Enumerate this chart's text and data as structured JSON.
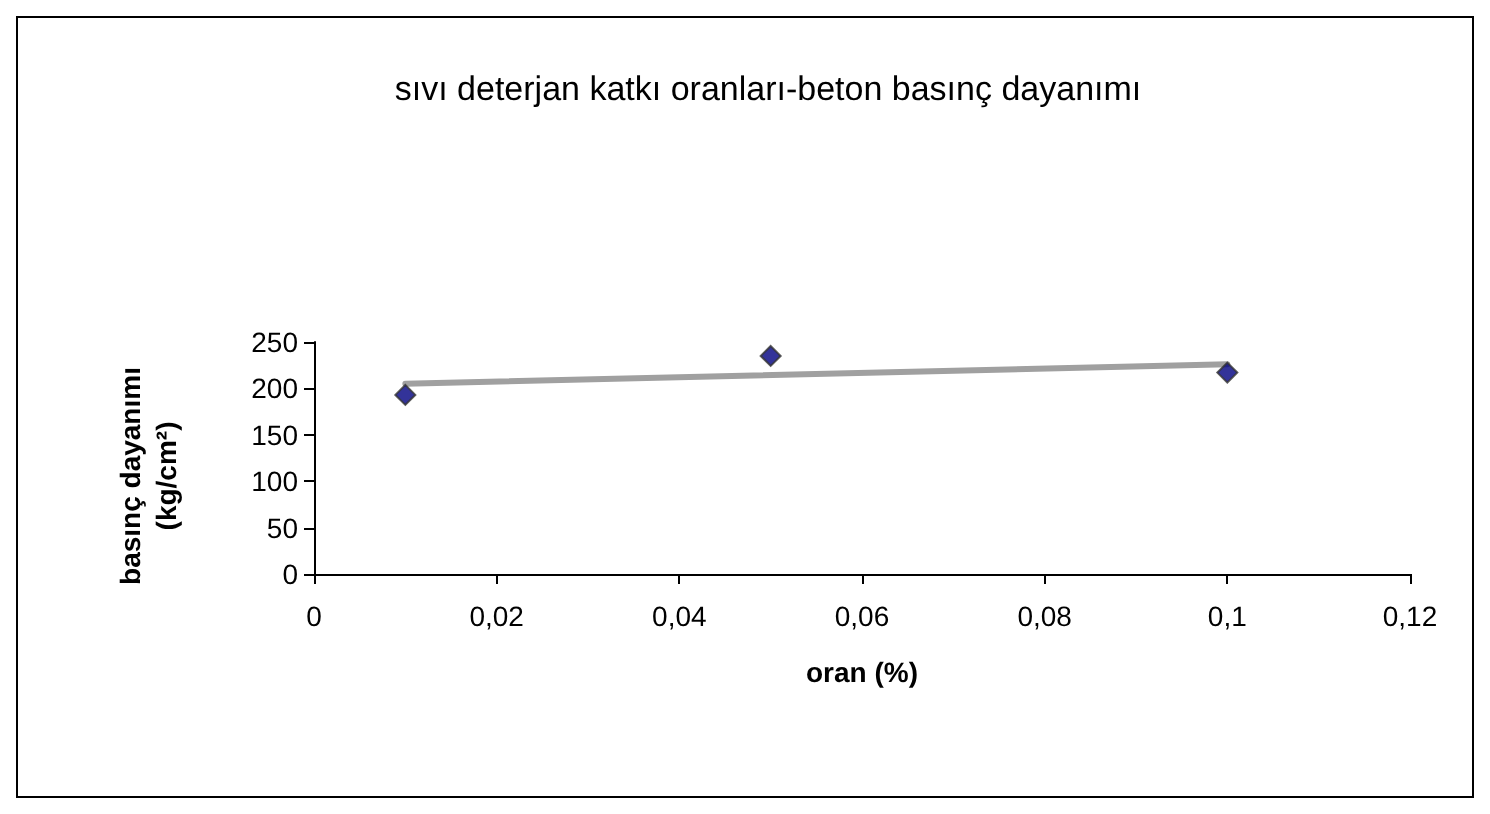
{
  "chart_data": {
    "type": "scatter",
    "title": "sıvı deterjan katkı oranları-beton basınç dayanımı",
    "xlabel": "oran (%)",
    "ylabel": "basınç dayanımı\n(kg/cm²)",
    "marker": "diamond",
    "grid": false,
    "xlim": [
      0,
      0.12
    ],
    "xticks": [
      0,
      {
        "value": 0.02,
        "label": "0,02"
      },
      {
        "value": 0.04,
        "label": "0,04"
      },
      {
        "value": 0.06,
        "label": "0,06"
      },
      {
        "value": 0.08,
        "label": "0,08"
      },
      {
        "value": 0.1,
        "label": "0,1"
      },
      {
        "value": 0.12,
        "label": "0,12"
      }
    ],
    "ylim": [
      0,
      250
    ],
    "yticks": [
      0,
      50,
      100,
      150,
      200,
      250
    ],
    "series": [
      {
        "color": "#000080",
        "x": [
          0.01,
          0.05,
          0.1
        ],
        "values": [
          193,
          235,
          217
        ]
      },
      {
        "type": "line",
        "color": "#a0a0a0",
        "x": [
          0.01,
          0.1
        ],
        "values": [
          205,
          226
        ],
        "marker": "none"
      }
    ]
  }
}
